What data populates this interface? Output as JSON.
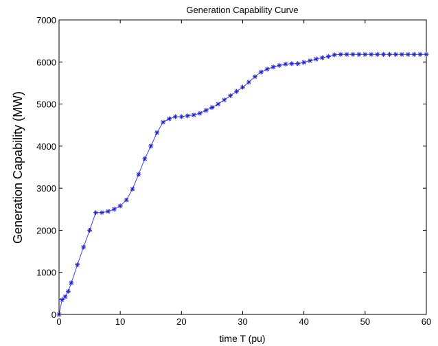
{
  "chart_data": {
    "type": "line",
    "title": "Generation Capability Curve",
    "xlabel": "time T (pu)",
    "ylabel": "Generation Capability (MW)",
    "xlim": [
      0,
      60
    ],
    "ylim": [
      0,
      7000
    ],
    "xticks": [
      "0",
      "10",
      "20",
      "30",
      "40",
      "50",
      "60"
    ],
    "yticks": [
      "0",
      "1000",
      "2000",
      "3000",
      "4000",
      "5000",
      "6000",
      "7000"
    ],
    "grid": false,
    "marker": "asterisk",
    "colors": {
      "line": "#4040ff",
      "marker": "#1f1fd0",
      "axis": "#000000"
    },
    "series": [
      {
        "x": [
          0,
          0.5,
          1,
          1.5,
          2,
          3,
          4,
          5,
          6,
          7,
          8,
          9,
          10,
          11,
          12,
          13,
          14,
          15,
          16,
          17,
          18,
          19,
          20,
          21,
          22,
          23,
          24,
          25,
          26,
          27,
          28,
          29,
          30,
          31,
          32,
          33,
          34,
          35,
          36,
          37,
          38,
          39,
          40,
          41,
          42,
          43,
          44,
          45,
          46,
          47,
          48,
          49,
          50,
          51,
          52,
          53,
          54,
          55,
          56,
          57,
          58,
          59,
          60
        ],
        "y": [
          0,
          350,
          420,
          550,
          750,
          1180,
          1600,
          2000,
          2420,
          2420,
          2450,
          2500,
          2580,
          2720,
          2980,
          3330,
          3700,
          4000,
          4320,
          4570,
          4650,
          4700,
          4700,
          4720,
          4740,
          4780,
          4850,
          4920,
          5000,
          5100,
          5200,
          5300,
          5400,
          5520,
          5650,
          5760,
          5830,
          5880,
          5920,
          5950,
          5960,
          5960,
          5990,
          6030,
          6070,
          6100,
          6130,
          6170,
          6180,
          6180,
          6180,
          6180,
          6180,
          6180,
          6180,
          6180,
          6180,
          6180,
          6180,
          6180,
          6180,
          6180,
          6180
        ]
      }
    ]
  }
}
